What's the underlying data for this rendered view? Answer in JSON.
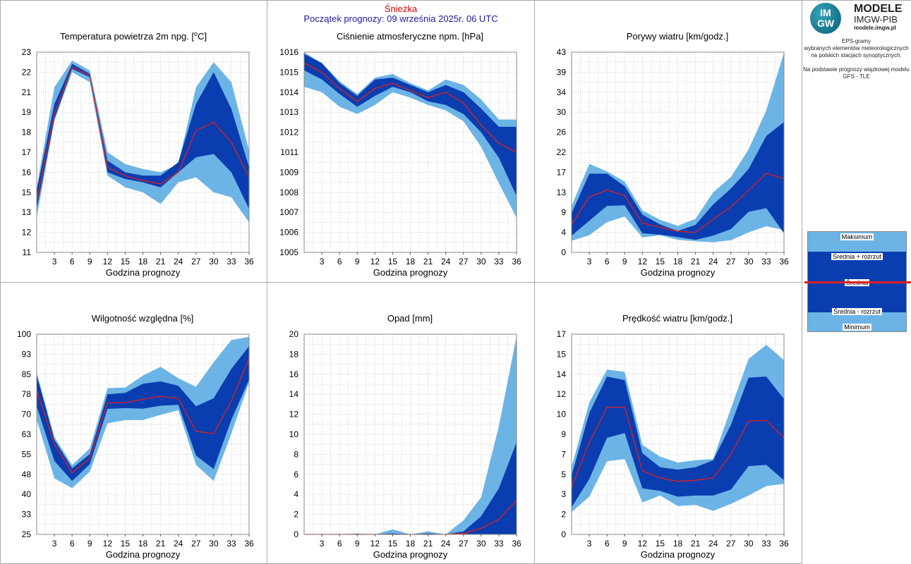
{
  "header": {
    "station": "Śnieżka",
    "forecast_start": "Początek prognozy: 09 września 2025r. 06 UTC"
  },
  "logo": {
    "mark_top": "IM",
    "mark_bottom": "GW",
    "name": "MODELE",
    "subname": "IMGW-PIB",
    "url": "modele.imgw.pl"
  },
  "description": {
    "line1": "EPS-gramy",
    "line2": "wybranych elementów meteorologicznych",
    "line3": "na polskich stacjach  synoptycznych.",
    "line4": "Na podstawie prognozy wiązkowej modelu",
    "line5": "GFS - TLE"
  },
  "legend": {
    "max": "Maksimum",
    "mean_plus": "Średnia + rozrzut",
    "mean": "Średnia",
    "mean_minus": "Średnia - rozrzut",
    "min": "Minimum"
  },
  "colors": {
    "band_outer": "#6cb4e6",
    "band_inner": "#0a3db0",
    "mean_line": "#e02020",
    "station_text": "#e00000",
    "forecast_text": "#1a1aa8"
  },
  "chart_data": [
    {
      "type": "area",
      "title_main": "Temperatura powietrza 2m npg. [",
      "title_sup": "o",
      "title_end": "C]",
      "xlabel": "Godzina prognozy",
      "x_ticks": [
        "3",
        "6",
        "9",
        "12",
        "15",
        "18",
        "21",
        "24",
        "27",
        "30",
        "33",
        "36"
      ],
      "y_ticks": [
        "11",
        "12",
        "13",
        "15",
        "16",
        "17",
        "18",
        "19",
        "21",
        "22",
        "23"
      ],
      "ylim": [
        11,
        23
      ],
      "x": [
        0,
        3,
        6,
        9,
        12,
        15,
        18,
        21,
        24,
        27,
        30,
        33,
        36
      ],
      "min": [
        13.1,
        18.9,
        21.8,
        21.2,
        15.6,
        14.9,
        14.6,
        13.9,
        15.2,
        15.5,
        14.6,
        14.3,
        12.8
      ],
      "mean_minus": [
        13.6,
        19.0,
        22.0,
        21.5,
        15.8,
        15.4,
        15.2,
        14.9,
        15.8,
        16.7,
        16.9,
        15.8,
        13.6
      ],
      "mean": [
        14.1,
        19.3,
        22.1,
        21.6,
        16.1,
        15.6,
        15.3,
        15.1,
        15.8,
        18.3,
        18.8,
        17.6,
        15.5
      ],
      "mean_plus": [
        14.7,
        19.9,
        22.3,
        21.7,
        16.5,
        15.8,
        15.6,
        15.6,
        16.4,
        19.9,
        21.8,
        19.6,
        16.1
      ],
      "max": [
        14.9,
        20.9,
        22.5,
        21.9,
        17.0,
        16.3,
        16.0,
        15.8,
        16.3,
        20.9,
        22.4,
        21.2,
        17.1
      ]
    },
    {
      "type": "area",
      "title_main": "Ciśnienie atmosferyczne npm. [hPa]",
      "xlabel": "Godzina prognozy",
      "x_ticks": [
        "3",
        "6",
        "9",
        "12",
        "15",
        "18",
        "21",
        "24",
        "27",
        "30",
        "33",
        "36"
      ],
      "y_ticks": [
        "1005",
        "1006",
        "1007",
        "1008",
        "1009",
        "1011",
        "1012",
        "1013",
        "1014",
        "1015",
        "1016"
      ],
      "ylim": [
        1005,
        1016
      ],
      "x": [
        0,
        3,
        6,
        9,
        12,
        15,
        18,
        21,
        24,
        27,
        30,
        33,
        36
      ],
      "min": [
        1014.1,
        1013.8,
        1013.0,
        1012.6,
        1013.1,
        1013.8,
        1013.5,
        1013.1,
        1012.8,
        1012.2,
        1010.8,
        1008.8,
        1006.9
      ],
      "mean_minus": [
        1015.0,
        1014.5,
        1013.7,
        1013.0,
        1013.6,
        1014.1,
        1013.8,
        1013.3,
        1013.1,
        1012.6,
        1011.6,
        1010.2,
        1008.1
      ],
      "mean": [
        1015.4,
        1014.9,
        1014.0,
        1013.3,
        1014.0,
        1014.3,
        1013.9,
        1013.5,
        1013.8,
        1013.2,
        1012.0,
        1011.0,
        1010.5
      ],
      "mean_plus": [
        1015.9,
        1015.4,
        1014.3,
        1013.6,
        1014.5,
        1014.6,
        1014.2,
        1013.8,
        1014.2,
        1013.8,
        1012.9,
        1011.9,
        1011.9
      ],
      "max": [
        1016.0,
        1015.4,
        1014.4,
        1013.7,
        1014.6,
        1014.8,
        1014.3,
        1013.9,
        1014.5,
        1014.2,
        1013.4,
        1012.3,
        1012.3
      ]
    },
    {
      "type": "area",
      "title_main": "Porywy wiatru [km/godz.]",
      "xlabel": "Godzina prognozy",
      "x_ticks": [
        "3",
        "6",
        "9",
        "12",
        "15",
        "18",
        "21",
        "24",
        "27",
        "30",
        "33",
        "36"
      ],
      "y_ticks": [
        "0",
        "4",
        "9",
        "13",
        "17",
        "22",
        "26",
        "30",
        "34",
        "39",
        "43"
      ],
      "ylim": [
        0,
        43
      ],
      "x": [
        0,
        3,
        6,
        9,
        12,
        15,
        18,
        21,
        24,
        27,
        30,
        33,
        36
      ],
      "min": [
        2.5,
        3.7,
        6.5,
        7.7,
        3.2,
        3.7,
        2.7,
        2.4,
        2.2,
        2.6,
        4.3,
        5.6,
        4.8
      ],
      "mean_minus": [
        3.6,
        6.8,
        10.0,
        10.1,
        4.1,
        3.8,
        3.3,
        2.7,
        3.6,
        5.0,
        8.7,
        9.5,
        4.1
      ],
      "mean": [
        6.0,
        11.9,
        13.4,
        12.2,
        6.3,
        5.4,
        4.5,
        4.3,
        7.1,
        9.8,
        13.3,
        17.0,
        15.8
      ],
      "mean_plus": [
        8.4,
        16.9,
        16.9,
        14.2,
        8.1,
        6.0,
        4.6,
        5.9,
        10.3,
        13.7,
        17.9,
        25.0,
        28.0
      ],
      "max": [
        10.0,
        19.0,
        17.4,
        15.2,
        9.0,
        7.0,
        5.7,
        7.2,
        12.9,
        16.2,
        22.1,
        30.5,
        42.9
      ]
    },
    {
      "type": "area",
      "title_main": "Wilgotność względna [%]",
      "xlabel": "Godzina prognozy",
      "x_ticks": [
        "3",
        "6",
        "9",
        "12",
        "15",
        "18",
        "21",
        "24",
        "27",
        "30",
        "33",
        "36"
      ],
      "y_ticks": [
        "25",
        "33",
        "40",
        "48",
        "55",
        "63",
        "70",
        "78",
        "85",
        "93",
        "100"
      ],
      "ylim": [
        25,
        100
      ],
      "x": [
        0,
        3,
        6,
        9,
        12,
        15,
        18,
        21,
        24,
        27,
        30,
        33,
        36
      ],
      "min": [
        68.0,
        46.0,
        42.3,
        48.5,
        66.6,
        67.8,
        67.8,
        69.8,
        71.5,
        51.0,
        45.0,
        62.8,
        82.0
      ],
      "mean_minus": [
        73.0,
        52.5,
        45.0,
        51.3,
        72.0,
        72.3,
        72.1,
        73.2,
        73.5,
        54.5,
        49.5,
        68.0,
        83.0
      ],
      "mean": [
        79.0,
        58.8,
        48.1,
        53.5,
        74.2,
        74.4,
        75.6,
        76.8,
        75.9,
        63.6,
        62.7,
        75.0,
        91.0
      ],
      "mean_plus": [
        84.7,
        60.4,
        49.8,
        55.0,
        77.5,
        78.0,
        81.4,
        82.3,
        80.7,
        73.0,
        76.0,
        87.0,
        95.5
      ],
      "max": [
        85.6,
        61.5,
        51.0,
        57.2,
        79.8,
        80.0,
        84.5,
        87.8,
        83.5,
        80.3,
        89.5,
        97.8,
        99.0
      ]
    },
    {
      "type": "area",
      "title_main": "Opad [mm]",
      "xlabel": "Godzina prognozy",
      "x_ticks": [
        "3",
        "6",
        "9",
        "12",
        "15",
        "18",
        "21",
        "24",
        "27",
        "30",
        "33",
        "36"
      ],
      "y_ticks": [
        "0",
        "2",
        "4",
        "6",
        "8",
        "10",
        "12",
        "14",
        "16",
        "18",
        "20"
      ],
      "ylim": [
        0,
        20
      ],
      "x": [
        0,
        3,
        6,
        9,
        12,
        15,
        18,
        21,
        24,
        27,
        30,
        33,
        36
      ],
      "min": [
        0,
        0,
        0,
        0,
        0,
        0,
        0,
        0,
        0,
        0,
        0,
        0,
        0
      ],
      "mean_minus": [
        0,
        0,
        0,
        0,
        0,
        0,
        0,
        0,
        0,
        0,
        0,
        0,
        0
      ],
      "mean": [
        0,
        0,
        0,
        0,
        0,
        0,
        0,
        0,
        0,
        0.1,
        0.6,
        1.5,
        3.4
      ],
      "mean_plus": [
        0,
        0,
        0,
        0.05,
        0,
        0.1,
        0,
        0.1,
        0,
        0.3,
        1.8,
        4.6,
        9.2
      ],
      "max": [
        0,
        0,
        0,
        0.1,
        0,
        0.5,
        0,
        0.3,
        0,
        1.4,
        3.7,
        10.8,
        19.8
      ]
    },
    {
      "type": "area",
      "title_main": "Prędkość wiatru [km/godz.]",
      "xlabel": "Godzina prognozy",
      "x_ticks": [
        "3",
        "6",
        "9",
        "12",
        "15",
        "18",
        "21",
        "24",
        "27",
        "30",
        "33",
        "36"
      ],
      "y_ticks": [
        "0",
        "2",
        "3",
        "5",
        "7",
        "9",
        "10",
        "12",
        "14",
        "15",
        "17"
      ],
      "ylim": [
        0,
        17
      ],
      "x": [
        0,
        3,
        6,
        9,
        12,
        15,
        18,
        21,
        24,
        27,
        30,
        33,
        36
      ],
      "min": [
        1.9,
        3.2,
        6.2,
        6.4,
        2.7,
        3.3,
        2.4,
        2.5,
        2.0,
        2.6,
        3.3,
        4.1,
        4.3
      ],
      "mean_minus": [
        2.3,
        4.7,
        8.2,
        8.6,
        3.9,
        3.7,
        3.2,
        3.3,
        3.3,
        3.8,
        5.8,
        5.9,
        4.6
      ],
      "mean": [
        4.0,
        7.8,
        10.8,
        10.8,
        5.4,
        4.8,
        4.5,
        4.6,
        4.8,
        6.8,
        9.6,
        9.7,
        8.2
      ],
      "mean_plus": [
        5.0,
        10.3,
        13.4,
        13.1,
        6.9,
        5.7,
        5.5,
        5.7,
        6.3,
        9.3,
        13.3,
        13.4,
        11.5
      ],
      "max": [
        5.7,
        11.2,
        14.0,
        13.8,
        7.6,
        6.6,
        6.1,
        6.3,
        6.4,
        10.7,
        14.9,
        16.1,
        14.8
      ]
    }
  ]
}
